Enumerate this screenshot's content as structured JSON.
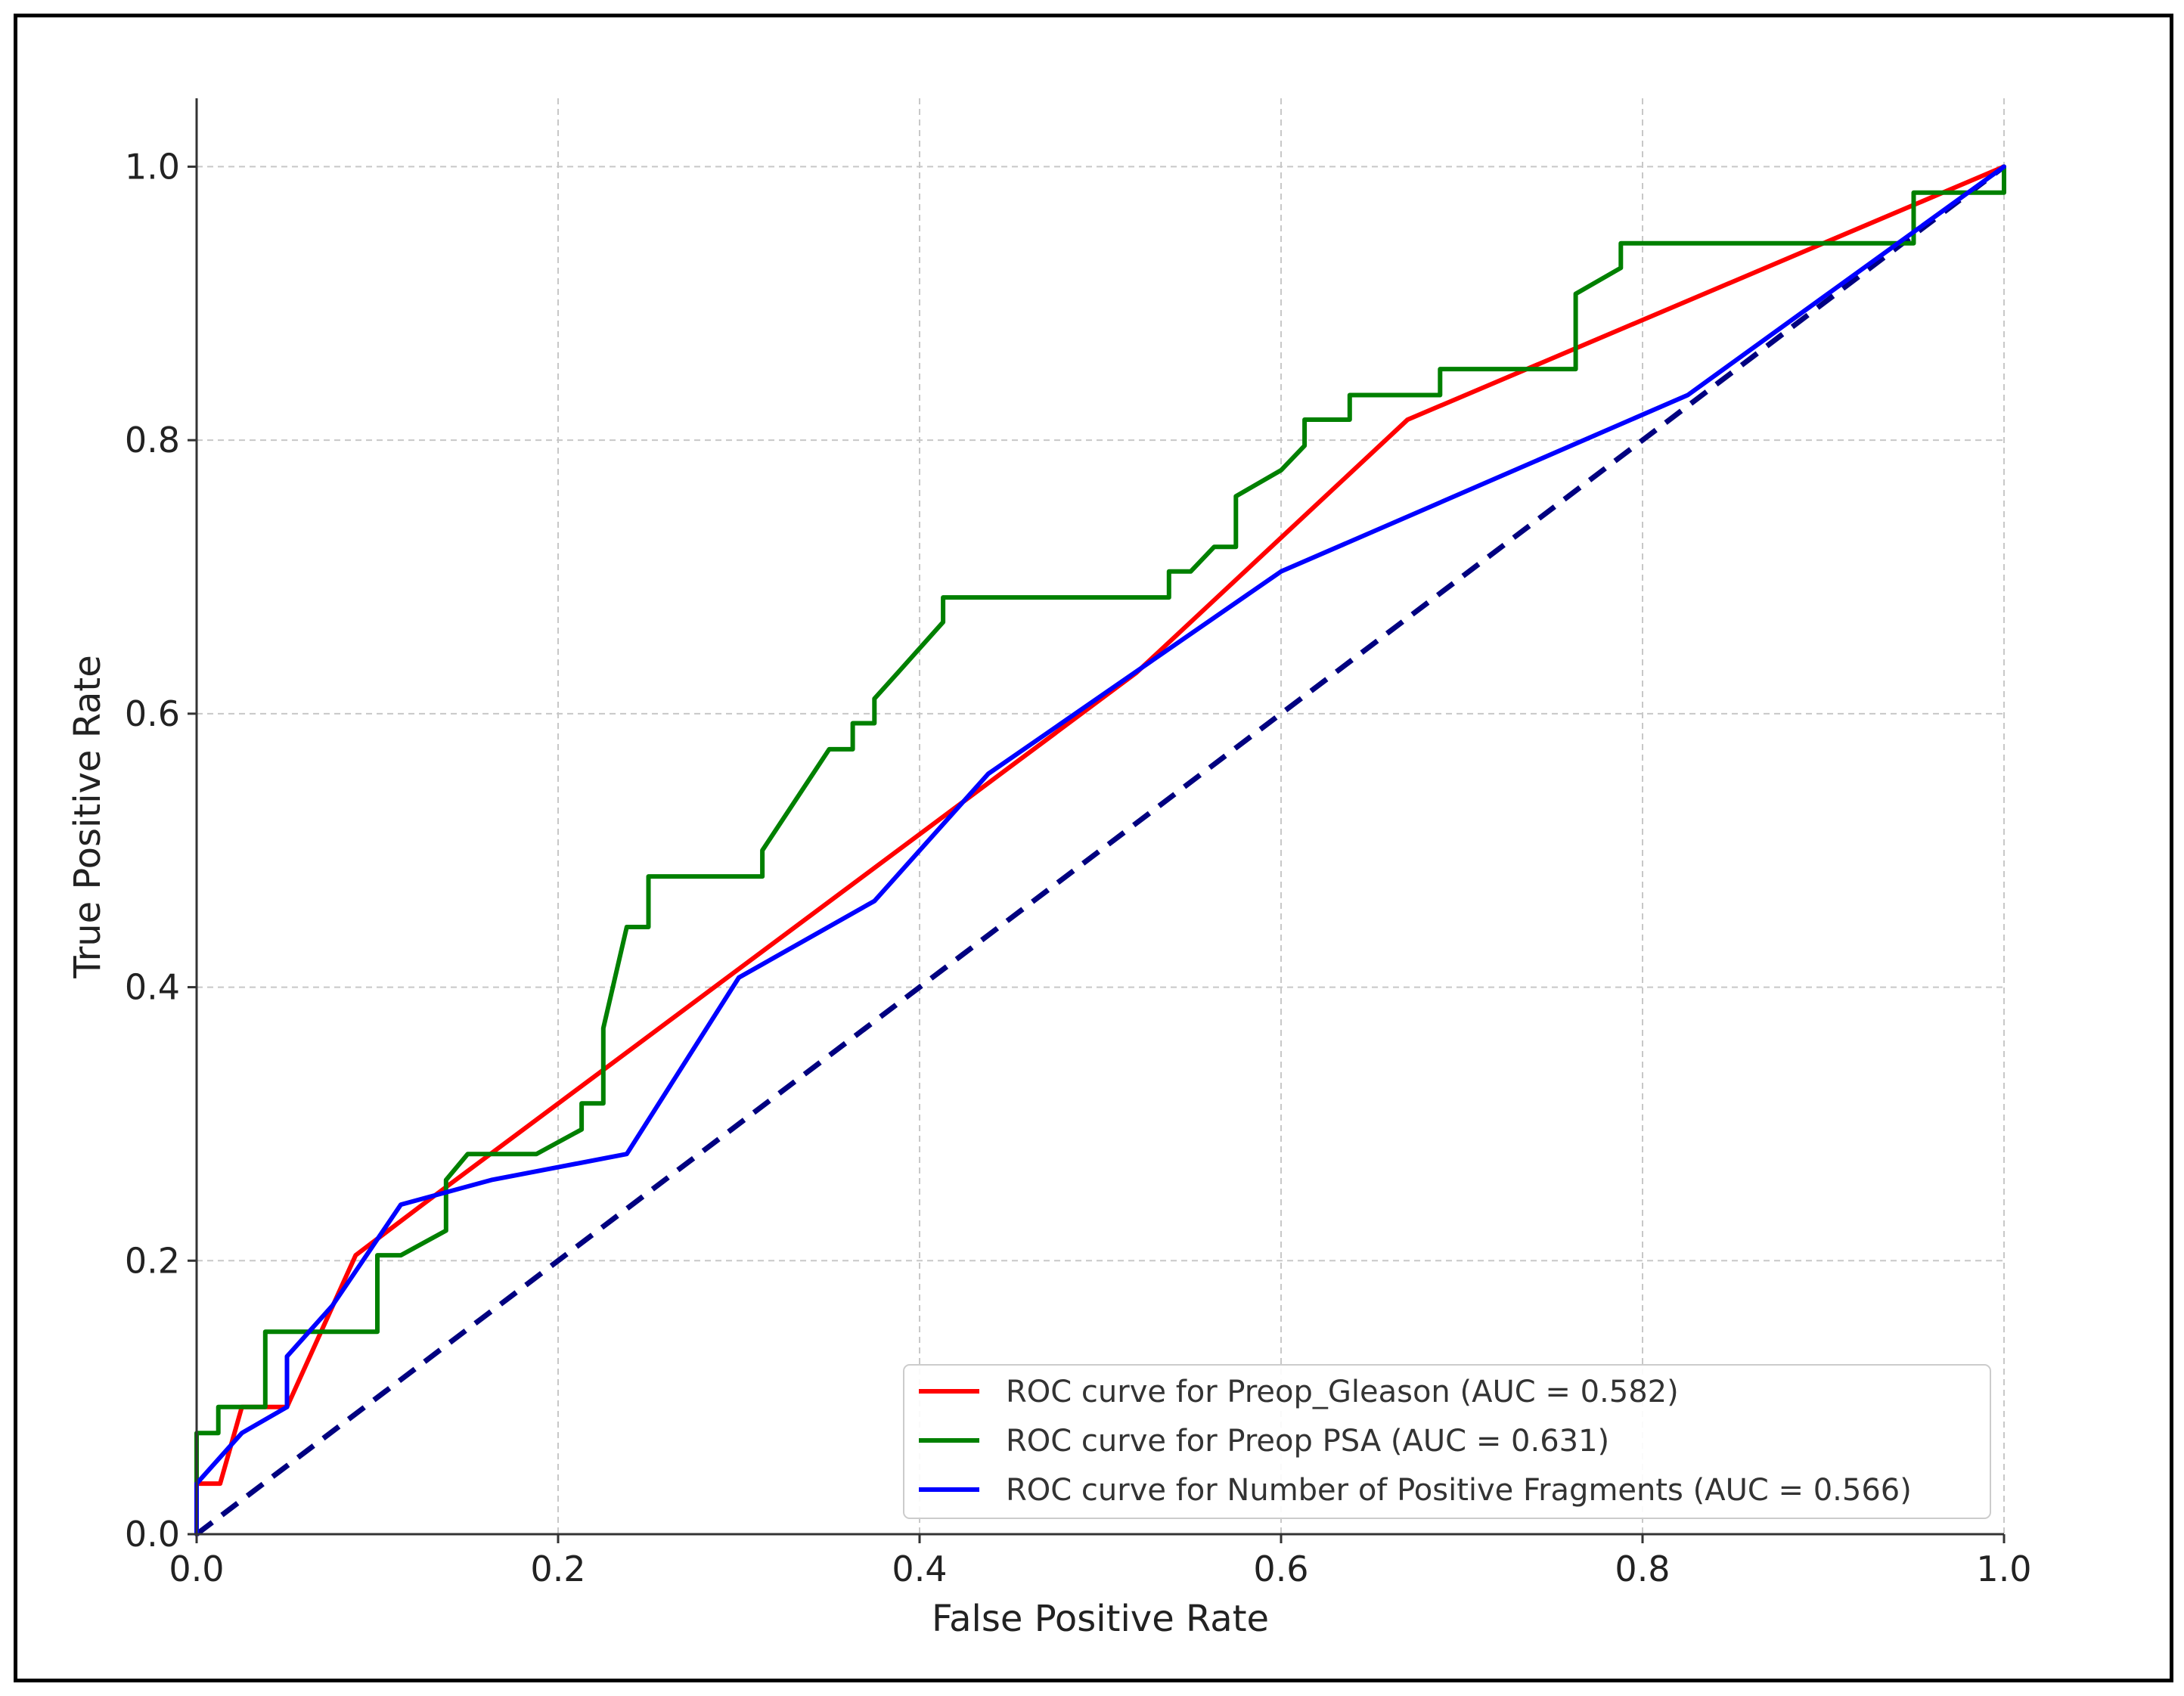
{
  "chart_data": {
    "type": "line",
    "title": "",
    "xlabel": "False Positive Rate",
    "ylabel": "True Positive Rate",
    "xlim": [
      0.0,
      1.0
    ],
    "ylim": [
      0.0,
      1.05
    ],
    "xticks": [
      "0.0",
      "0.2",
      "0.4",
      "0.6",
      "0.8",
      "1.0"
    ],
    "yticks": [
      "0.0",
      "0.2",
      "0.4",
      "0.6",
      "0.8",
      "1.0"
    ],
    "grid": true,
    "legend_position": "lower-right",
    "series": [
      {
        "name": "ROC curve for Preop_Gleason (AUC = 0.582)",
        "color": "#ff0000",
        "x": [
          0.0,
          0.0,
          0.013,
          0.025,
          0.05,
          0.088,
          0.125,
          0.52,
          0.67,
          1.0
        ],
        "y": [
          0.0,
          0.037,
          0.037,
          0.093,
          0.093,
          0.204,
          0.241,
          0.63,
          0.815,
          1.0
        ]
      },
      {
        "name": "ROC curve for Preop PSA (AUC = 0.631)",
        "color": "#008000",
        "x": [
          0.0,
          0.0,
          0.012,
          0.012,
          0.038,
          0.038,
          0.1,
          0.1,
          0.113,
          0.138,
          0.138,
          0.15,
          0.188,
          0.213,
          0.213,
          0.225,
          0.225,
          0.238,
          0.25,
          0.25,
          0.313,
          0.313,
          0.35,
          0.363,
          0.363,
          0.375,
          0.375,
          0.388,
          0.413,
          0.413,
          0.538,
          0.538,
          0.55,
          0.563,
          0.575,
          0.575,
          0.6,
          0.613,
          0.613,
          0.638,
          0.638,
          0.688,
          0.688,
          0.763,
          0.763,
          0.788,
          0.788,
          0.95,
          0.95,
          1.0,
          1.0
        ],
        "y": [
          0.0,
          0.074,
          0.074,
          0.093,
          0.093,
          0.148,
          0.148,
          0.204,
          0.204,
          0.222,
          0.259,
          0.278,
          0.278,
          0.296,
          0.315,
          0.315,
          0.37,
          0.444,
          0.444,
          0.481,
          0.481,
          0.5,
          0.574,
          0.574,
          0.593,
          0.593,
          0.611,
          0.63,
          0.667,
          0.685,
          0.685,
          0.704,
          0.704,
          0.722,
          0.722,
          0.759,
          0.778,
          0.796,
          0.815,
          0.815,
          0.833,
          0.833,
          0.852,
          0.852,
          0.907,
          0.926,
          0.944,
          0.944,
          0.981,
          0.981,
          1.0
        ]
      },
      {
        "name": "ROC curve for Number of Positive Fragments (AUC = 0.566)",
        "color": "#0000ff",
        "x": [
          0.0,
          0.0,
          0.025,
          0.05,
          0.05,
          0.075,
          0.113,
          0.163,
          0.238,
          0.3,
          0.375,
          0.438,
          0.6,
          0.825,
          1.0
        ],
        "y": [
          0.0,
          0.037,
          0.074,
          0.093,
          0.13,
          0.167,
          0.241,
          0.259,
          0.278,
          0.407,
          0.463,
          0.556,
          0.704,
          0.833,
          1.0
        ]
      },
      {
        "name": "",
        "color": "#000080",
        "dashed": true,
        "x": [
          0.0,
          1.0
        ],
        "y": [
          0.0,
          1.0
        ]
      }
    ]
  }
}
